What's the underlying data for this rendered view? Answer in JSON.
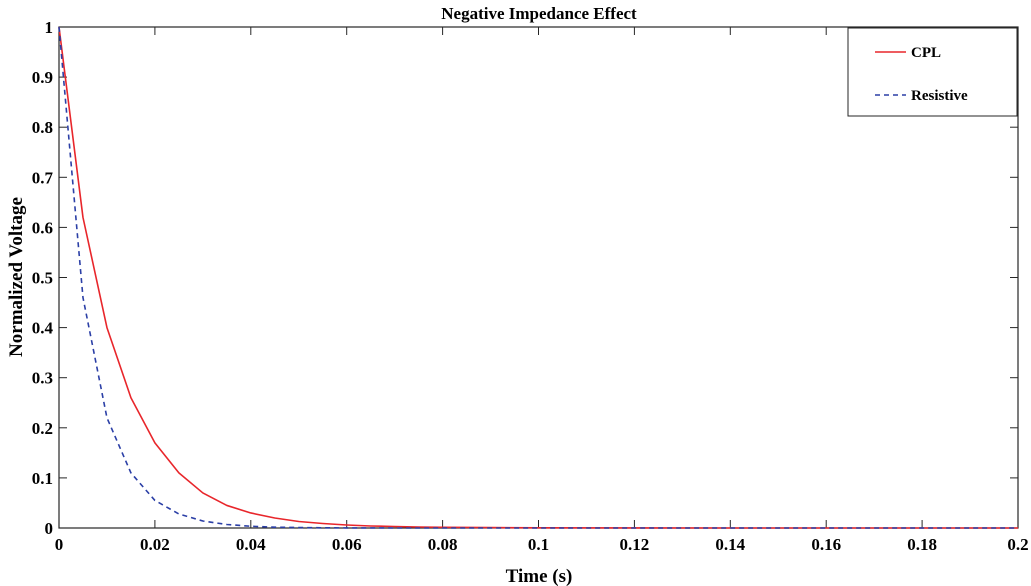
{
  "chart_data": {
    "type": "line",
    "title": "Negative Impedance Effect",
    "xlabel": "Time (s)",
    "ylabel": "Normalized Voltage",
    "xlim": [
      0,
      0.2
    ],
    "ylim": [
      0,
      1
    ],
    "x_ticks": [
      0,
      0.02,
      0.04,
      0.06,
      0.08,
      0.1,
      0.12,
      0.14,
      0.16,
      0.18,
      0.2
    ],
    "x_tick_labels": [
      "0",
      "0.02",
      "0.04",
      "0.06",
      "0.08",
      "0.1",
      "0.12",
      "0.14",
      "0.16",
      "0.18",
      "0.2"
    ],
    "y_ticks": [
      0,
      0.1,
      0.2,
      0.3,
      0.4,
      0.5,
      0.6,
      0.7,
      0.8,
      0.9,
      1
    ],
    "y_tick_labels": [
      "0",
      "0.1",
      "0.2",
      "0.3",
      "0.4",
      "0.5",
      "0.6",
      "0.7",
      "0.8",
      "0.9",
      "1"
    ],
    "grid": false,
    "legend_position": "top-right",
    "x": [
      0,
      0.005,
      0.01,
      0.015,
      0.02,
      0.025,
      0.03,
      0.035,
      0.04,
      0.045,
      0.05,
      0.055,
      0.06,
      0.065,
      0.07,
      0.075,
      0.08,
      0.09,
      0.1,
      0.12,
      0.14,
      0.16,
      0.18,
      0.2
    ],
    "series": [
      {
        "name": "CPL",
        "color": "#e8262b",
        "dash": "solid",
        "values": [
          1.0,
          0.62,
          0.4,
          0.26,
          0.17,
          0.11,
          0.07,
          0.045,
          0.03,
          0.02,
          0.013,
          0.009,
          0.006,
          0.004,
          0.003,
          0.002,
          0.0015,
          0.0008,
          0.0004,
          0.0001,
          0.0,
          0.0,
          0.0,
          0.0
        ]
      },
      {
        "name": "Resistive",
        "color": "#2b3fa6",
        "dash": "dashed",
        "values": [
          1.0,
          0.46,
          0.22,
          0.11,
          0.055,
          0.028,
          0.014,
          0.007,
          0.0035,
          0.0017,
          0.0009,
          0.0004,
          0.0002,
          0.0001,
          0.0,
          0.0,
          0.0,
          0.0,
          0.0,
          0.0,
          0.0,
          0.0,
          0.0,
          0.0
        ]
      }
    ]
  }
}
